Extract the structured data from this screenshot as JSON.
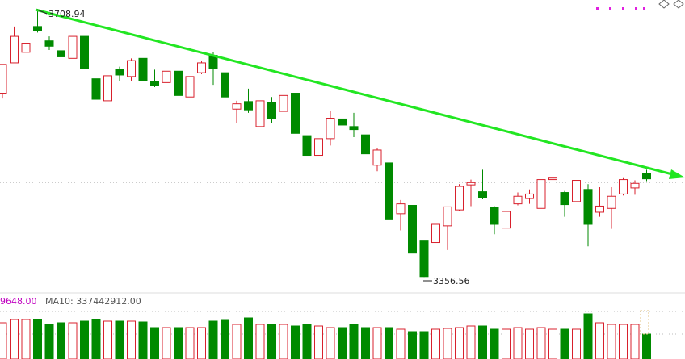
{
  "chart_data": [
    {
      "type": "candlestick",
      "open": [
        3599,
        3639,
        3653,
        3687,
        3668,
        3655,
        3645,
        3674,
        3618,
        3589,
        3630,
        3621,
        3645,
        3614,
        3613,
        3628,
        3594,
        3626,
        3649,
        3626,
        3578,
        3588,
        3555,
        3587,
        3575,
        3599,
        3543,
        3517,
        3539,
        3565,
        3555,
        3544,
        3504,
        3507,
        3440,
        3451,
        3404,
        3402,
        3424,
        3445,
        3478,
        3469,
        3448,
        3421,
        3453,
        3460,
        3447,
        3485,
        3468,
        3456,
        3472,
        3442,
        3447,
        3466,
        3474,
        3493
      ],
      "high": [
        3637,
        3687,
        3665,
        3708.94,
        3674,
        3663,
        3674,
        3674,
        3618,
        3622,
        3634,
        3645,
        3645,
        3630,
        3628,
        3628,
        3621,
        3642,
        3653,
        3626,
        3589,
        3605,
        3589,
        3594,
        3596,
        3599,
        3543,
        3539,
        3575,
        3575,
        3573,
        3544,
        3527,
        3507,
        3458,
        3451,
        3404,
        3426,
        3449,
        3479,
        3485,
        3498,
        3450,
        3445,
        3468,
        3472,
        3485,
        3490,
        3470,
        3484,
        3479,
        3475,
        3475,
        3487,
        3484,
        3498
      ],
      "low": [
        3592,
        3639,
        3653,
        3679,
        3656,
        3645,
        3645,
        3631,
        3591,
        3589,
        3615,
        3615,
        3615,
        3607,
        3613,
        3596,
        3594,
        3624,
        3610,
        3583,
        3560,
        3573,
        3555,
        3560,
        3575,
        3546,
        3517,
        3517,
        3530,
        3554,
        3541,
        3519,
        3496,
        3432,
        3418,
        3388,
        3356.56,
        3402,
        3392,
        3443,
        3450,
        3459,
        3413,
        3419,
        3451,
        3453,
        3447,
        3456,
        3436,
        3456,
        3397,
        3436,
        3420,
        3464,
        3465,
        3483
      ],
      "close": [
        3637,
        3674,
        3665,
        3681,
        3661,
        3647,
        3674,
        3631,
        3591,
        3622,
        3623,
        3642,
        3615,
        3609,
        3628,
        3596,
        3621,
        3639,
        3631,
        3594,
        3585,
        3577,
        3589,
        3566,
        3596,
        3546,
        3517,
        3539,
        3566,
        3557,
        3551,
        3519,
        3524,
        3432,
        3453,
        3388,
        3357,
        3426,
        3449,
        3476,
        3481,
        3461,
        3426,
        3443,
        3463,
        3466,
        3485,
        3487,
        3452,
        3484,
        3426,
        3450,
        3463,
        3485,
        3480,
        3486
      ],
      "up_color": "#d8202c",
      "down_color": "#008a00",
      "ylim": [
        3344,
        3722
      ]
    },
    {
      "type": "bar",
      "legend": [
        "9648.00",
        "MA10: 337442912.00"
      ],
      "values": [
        387000000,
        421400000,
        421400000,
        421400000,
        369800000,
        387000000,
        387000000,
        404200000,
        421400000,
        404200000,
        404200000,
        404200000,
        395600000,
        335400000,
        335400000,
        335400000,
        335400000,
        335400000,
        404200000,
        412800000,
        369800000,
        438600000,
        369800000,
        369800000,
        369800000,
        352600000,
        369800000,
        352600000,
        335400000,
        335400000,
        369800000,
        335400000,
        335400000,
        335400000,
        318200000,
        292400000,
        292400000,
        318200000,
        326800000,
        335400000,
        352600000,
        352600000,
        318200000,
        318200000,
        335400000,
        318200000,
        335400000,
        318200000,
        318200000,
        318200000,
        481600000,
        387000000,
        369800000,
        369800000,
        369800000,
        266600000
      ],
      "ylim": [
        0,
        533200000
      ]
    }
  ]
}
